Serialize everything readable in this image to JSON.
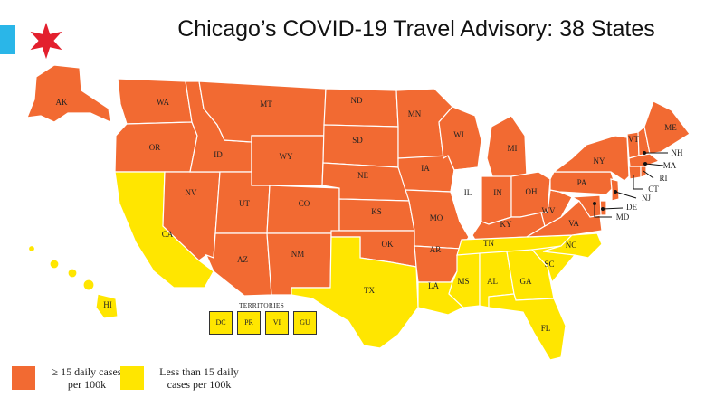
{
  "title": "Chicago’s COVID-19 Travel Advisory: 38 States",
  "colors": {
    "advisory": "#f26a32",
    "below": "#ffe600",
    "unaffected": "#ffffff",
    "flag_blue": "#2ab6e8",
    "flag_star": "#e3202e"
  },
  "states": {
    "WA": {
      "label": "WA",
      "status": "advisory"
    },
    "OR": {
      "label": "OR",
      "status": "advisory"
    },
    "CA": {
      "label": "CA",
      "status": "below"
    },
    "NV": {
      "label": "NV",
      "status": "advisory"
    },
    "ID": {
      "label": "ID",
      "status": "advisory"
    },
    "MT": {
      "label": "MT",
      "status": "advisory"
    },
    "WY": {
      "label": "WY",
      "status": "advisory"
    },
    "UT": {
      "label": "UT",
      "status": "advisory"
    },
    "AZ": {
      "label": "AZ",
      "status": "advisory"
    },
    "CO": {
      "label": "CO",
      "status": "advisory"
    },
    "NM": {
      "label": "NM",
      "status": "advisory"
    },
    "ND": {
      "label": "ND",
      "status": "advisory"
    },
    "SD": {
      "label": "SD",
      "status": "advisory"
    },
    "NE": {
      "label": "NE",
      "status": "advisory"
    },
    "KS": {
      "label": "KS",
      "status": "advisory"
    },
    "OK": {
      "label": "OK",
      "status": "advisory"
    },
    "TX": {
      "label": "TX",
      "status": "below"
    },
    "MN": {
      "label": "MN",
      "status": "advisory"
    },
    "IA": {
      "label": "IA",
      "status": "advisory"
    },
    "MO": {
      "label": "MO",
      "status": "advisory"
    },
    "AR": {
      "label": "AR",
      "status": "advisory"
    },
    "LA": {
      "label": "LA",
      "status": "below"
    },
    "WI": {
      "label": "WI",
      "status": "advisory"
    },
    "IL": {
      "label": "IL",
      "status": "unaffected"
    },
    "MI": {
      "label": "MI",
      "status": "advisory"
    },
    "IN": {
      "label": "IN",
      "status": "advisory"
    },
    "OH": {
      "label": "OH",
      "status": "advisory"
    },
    "KY": {
      "label": "KY",
      "status": "advisory"
    },
    "TN": {
      "label": "TN",
      "status": "below"
    },
    "MS": {
      "label": "MS",
      "status": "below"
    },
    "AL": {
      "label": "AL",
      "status": "below"
    },
    "GA": {
      "label": "GA",
      "status": "below"
    },
    "FL": {
      "label": "FL",
      "status": "below"
    },
    "SC": {
      "label": "SC",
      "status": "below"
    },
    "NC": {
      "label": "NC",
      "status": "below"
    },
    "VA": {
      "label": "VA",
      "status": "advisory"
    },
    "WV": {
      "label": "WV",
      "status": "advisory"
    },
    "PA": {
      "label": "PA",
      "status": "advisory"
    },
    "NY": {
      "label": "NY",
      "status": "advisory"
    },
    "VT": {
      "label": "VT",
      "status": "advisory"
    },
    "ME": {
      "label": "ME",
      "status": "advisory"
    },
    "NH": {
      "label": "NH",
      "status": "advisory"
    },
    "MA": {
      "label": "MA",
      "status": "advisory"
    },
    "RI": {
      "label": "RI",
      "status": "advisory"
    },
    "CT": {
      "label": "CT",
      "status": "advisory"
    },
    "NJ": {
      "label": "NJ",
      "status": "advisory"
    },
    "DE": {
      "label": "DE",
      "status": "advisory"
    },
    "MD": {
      "label": "MD",
      "status": "advisory"
    },
    "AK": {
      "label": "AK",
      "status": "advisory"
    },
    "HI": {
      "label": "HI",
      "status": "below"
    }
  },
  "territories": {
    "title": "TERRITORIES",
    "items": [
      {
        "label": "DC",
        "status": "below"
      },
      {
        "label": "PR",
        "status": "below"
      },
      {
        "label": "VI",
        "status": "below"
      },
      {
        "label": "GU",
        "status": "below"
      }
    ]
  },
  "legend": {
    "advisory_line1": "≥ 15 daily cases",
    "advisory_line2": "per 100k",
    "below_line1": "Less than 15 daily",
    "below_line2": "cases per 100k"
  }
}
